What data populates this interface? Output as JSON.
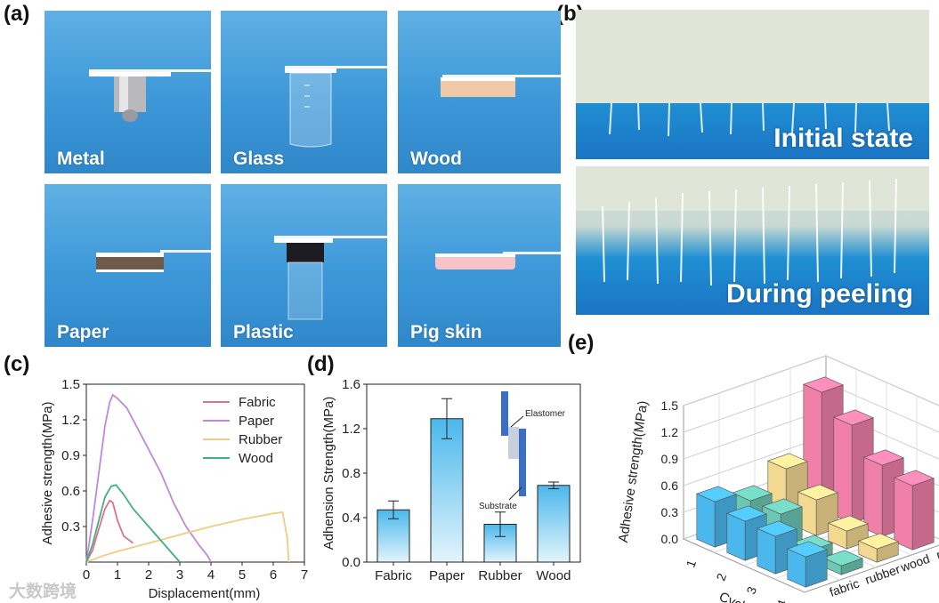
{
  "panels": {
    "a": "(a)",
    "b": "(b)",
    "c": "(c)",
    "d": "(d)",
    "e": "(e)"
  },
  "photos_a": [
    {
      "label": "Metal",
      "sample": "metal"
    },
    {
      "label": "Glass",
      "sample": "glass"
    },
    {
      "label": "Wood",
      "sample": "wood"
    },
    {
      "label": "Paper",
      "sample": "paper"
    },
    {
      "label": "Plastic",
      "sample": "plastic"
    },
    {
      "label": "Pig skin",
      "sample": "pigskin"
    }
  ],
  "photos_b": [
    {
      "label": "Initial state"
    },
    {
      "label": "During peeling"
    }
  ],
  "watermark": "大数跨境",
  "chart_data": [
    {
      "type": "line",
      "panel": "c",
      "xlabel": "Displacement(mm)",
      "ylabel": "Adhesive strength(MPa)",
      "xlim": [
        0,
        7
      ],
      "ylim": [
        0,
        1.5
      ],
      "xticks": [
        "0",
        "1",
        "2",
        "3",
        "4",
        "5",
        "6",
        "7"
      ],
      "yticks": [
        "0.3",
        "0.6",
        "0.9",
        "1.2",
        "1.5"
      ],
      "legend_position": "top-right",
      "series": [
        {
          "name": "Fabric",
          "color": "#e0708f",
          "points": [
            [
              0,
              0
            ],
            [
              0.2,
              0.1
            ],
            [
              0.4,
              0.28
            ],
            [
              0.6,
              0.45
            ],
            [
              0.75,
              0.52
            ],
            [
              0.85,
              0.5
            ],
            [
              1.0,
              0.35
            ],
            [
              1.2,
              0.22
            ],
            [
              1.5,
              0.16
            ]
          ]
        },
        {
          "name": "Paper",
          "color": "#c088d8",
          "points": [
            [
              0,
              0
            ],
            [
              0.2,
              0.35
            ],
            [
              0.4,
              0.75
            ],
            [
              0.6,
              1.15
            ],
            [
              0.75,
              1.35
            ],
            [
              0.85,
              1.41
            ],
            [
              1.0,
              1.38
            ],
            [
              1.3,
              1.3
            ],
            [
              1.6,
              1.15
            ],
            [
              2.0,
              0.95
            ],
            [
              2.4,
              0.75
            ],
            [
              2.8,
              0.5
            ],
            [
              3.2,
              0.3
            ],
            [
              3.6,
              0.15
            ],
            [
              3.9,
              0.05
            ],
            [
              4.0,
              0
            ]
          ]
        },
        {
          "name": "Rubber",
          "color": "#f0cc80",
          "points": [
            [
              0,
              0
            ],
            [
              0.5,
              0.05
            ],
            [
              1.0,
              0.09
            ],
            [
              2.0,
              0.16
            ],
            [
              3.0,
              0.23
            ],
            [
              4.0,
              0.3
            ],
            [
              5.0,
              0.36
            ],
            [
              6.0,
              0.41
            ],
            [
              6.3,
              0.42
            ],
            [
              6.45,
              0.2
            ],
            [
              6.5,
              0
            ]
          ]
        },
        {
          "name": "Wood",
          "color": "#40b080",
          "points": [
            [
              0,
              0
            ],
            [
              0.2,
              0.15
            ],
            [
              0.4,
              0.35
            ],
            [
              0.6,
              0.55
            ],
            [
              0.8,
              0.64
            ],
            [
              0.95,
              0.65
            ],
            [
              1.2,
              0.57
            ],
            [
              1.5,
              0.45
            ],
            [
              2.0,
              0.3
            ],
            [
              2.5,
              0.15
            ],
            [
              2.9,
              0.03
            ],
            [
              3.0,
              0
            ]
          ]
        }
      ]
    },
    {
      "type": "bar",
      "panel": "d",
      "ylabel": "Adhension Strength(MPa)",
      "categories": [
        "Fabric",
        "Paper",
        "Rubber",
        "Wood"
      ],
      "values": [
        0.47,
        1.29,
        0.34,
        0.69
      ],
      "errors": [
        0.08,
        0.18,
        0.11,
        0.03
      ],
      "ylim": [
        0,
        1.6
      ],
      "yticks": [
        "0.0",
        "0.4",
        "0.8",
        "1.2",
        "1.6"
      ],
      "bar_color": "#4ab8ec",
      "inset": {
        "labels": [
          "Elastomer",
          "Substrate"
        ]
      }
    },
    {
      "type": "bar3d",
      "panel": "e",
      "zlabel": "Adhesive strength(MPa)",
      "xlabel": "Cycle",
      "cycles": [
        "1",
        "2",
        "3",
        "4"
      ],
      "zticks": [
        "0.0",
        "0.3",
        "0.6",
        "0.9",
        "1.2",
        "1.5"
      ],
      "zlim": [
        0,
        1.5
      ],
      "series": [
        {
          "name": "fabric",
          "color": "#4ab8ec",
          "values": [
            0.51,
            0.44,
            0.42,
            0.34
          ]
        },
        {
          "name": "rubber",
          "color": "#6cc7b4",
          "values": [
            0.38,
            0.38,
            0.12,
            0.1
          ]
        },
        {
          "name": "wood",
          "color": "#f3d890",
          "values": [
            0.6,
            0.4,
            0.2,
            0.15
          ]
        },
        {
          "name": "paper",
          "color": "#f080a8",
          "values": [
            1.32,
            1.1,
            0.8,
            0.72
          ]
        }
      ],
      "depth_labels": [
        "paper",
        "wood",
        "rubber",
        "fabric"
      ]
    }
  ]
}
